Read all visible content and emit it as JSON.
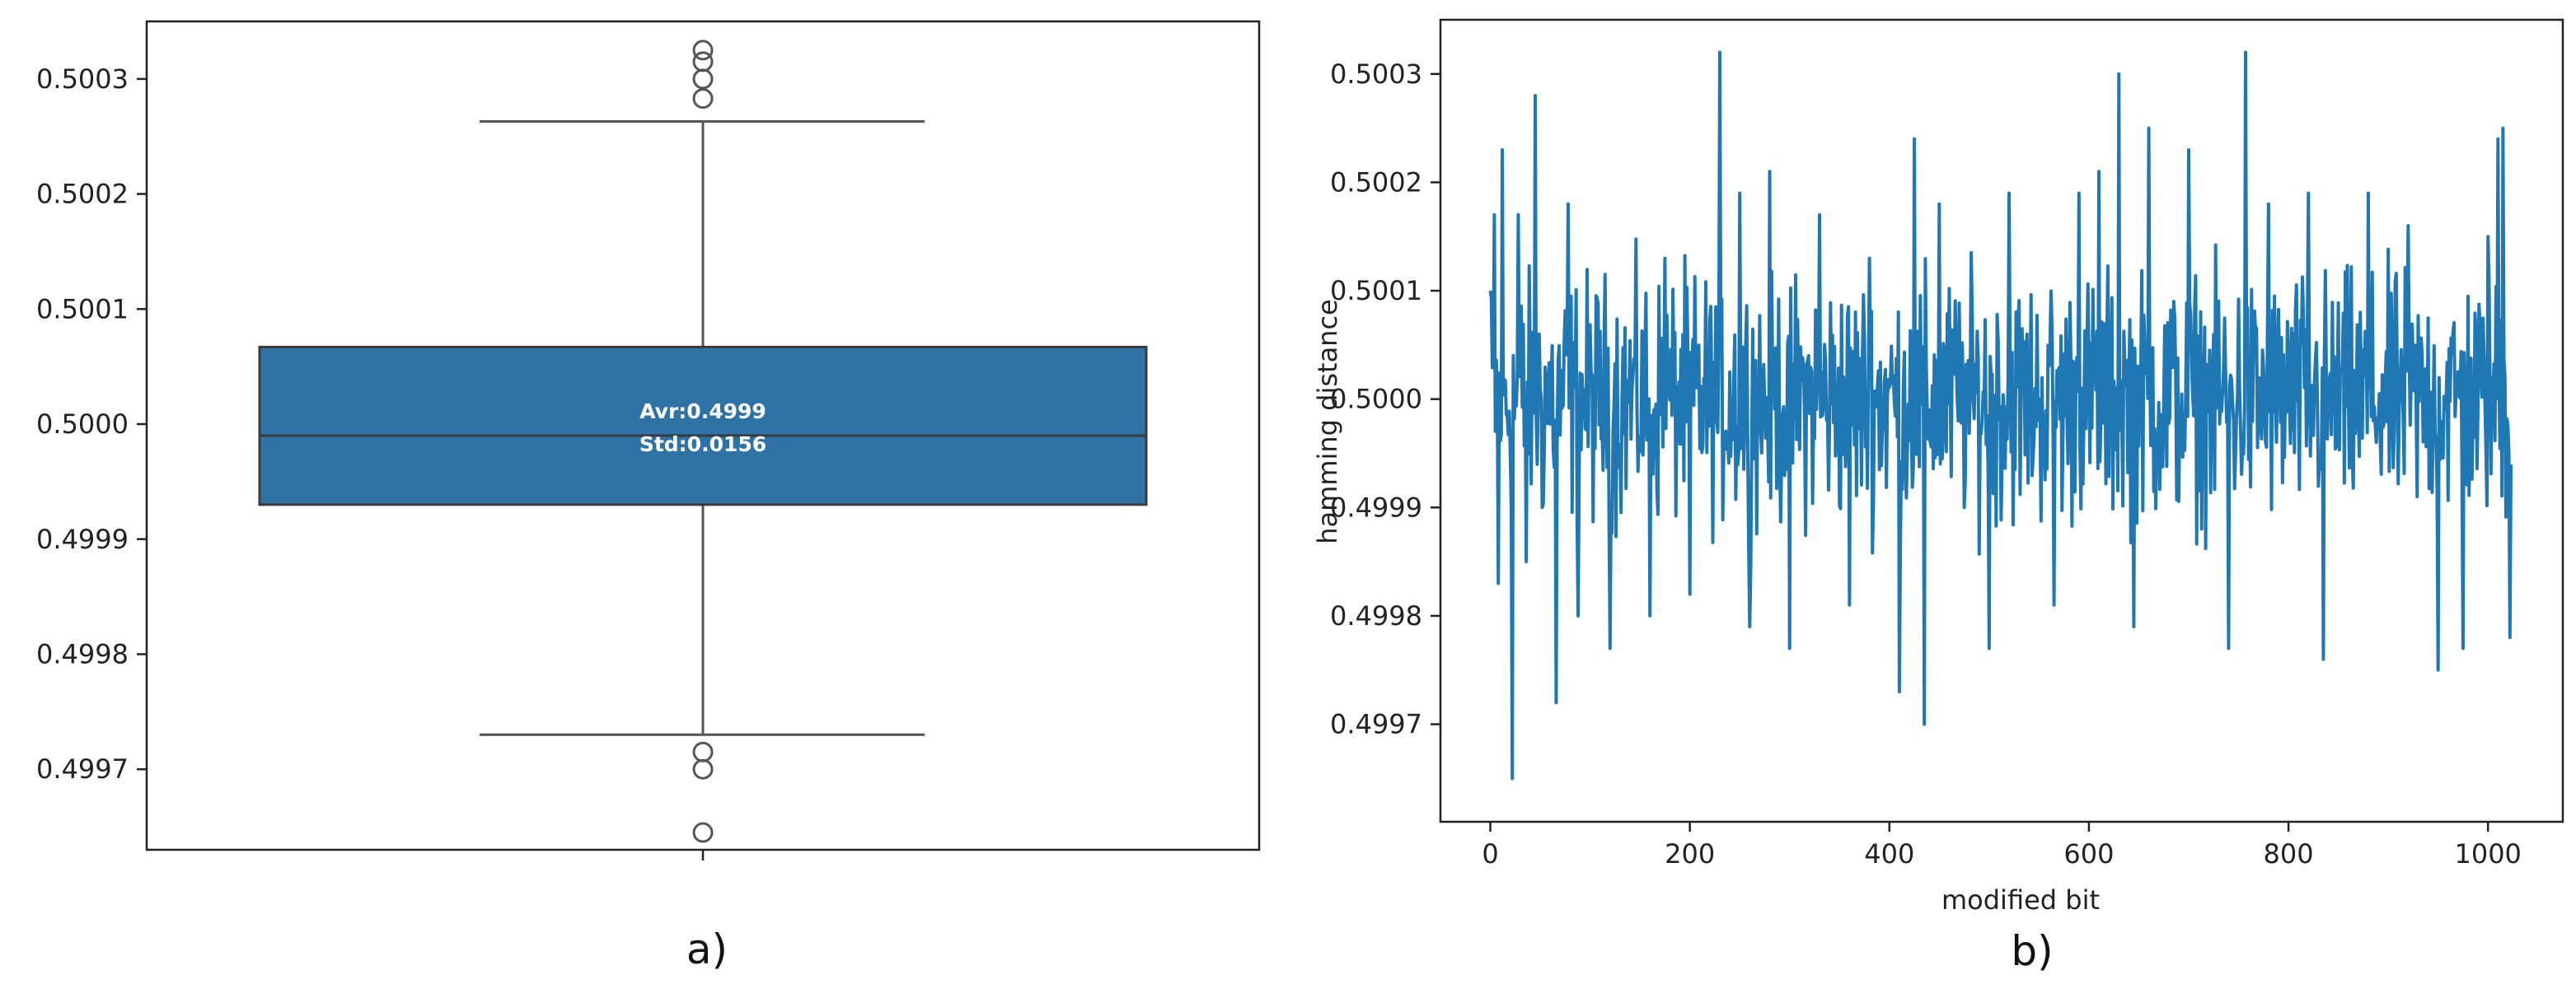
{
  "colors": {
    "box_fill": "#2f73a6",
    "line": "#1f77b4",
    "whisker": "#555555",
    "axes": "#222222"
  },
  "chart_data": [
    {
      "type": "box",
      "panel_label": "a)",
      "title": "",
      "xlabel": "",
      "ylabel": "",
      "ylim": [
        0.49963,
        0.50035
      ],
      "yticks": [
        0.4997,
        0.4998,
        0.4999,
        0.5,
        0.5001,
        0.5002,
        0.5003
      ],
      "ytick_labels": [
        "0.4997",
        "0.4998",
        "0.4999",
        "0.5000",
        "0.5001",
        "0.5002",
        "0.5003"
      ],
      "grid": false,
      "summary": {
        "whisker_low": 0.49973,
        "q1": 0.49993,
        "median": 0.49999,
        "q3": 0.500067,
        "whisker_high": 0.500263
      },
      "outliers": [
        0.500325,
        0.500315,
        0.5003,
        0.500283,
        0.499715,
        0.4997,
        0.499645
      ],
      "annotations": [
        "Avr:0.4999",
        "Std:0.0156"
      ]
    },
    {
      "type": "line",
      "panel_label": "b)",
      "title": "",
      "xlabel": "modified bit",
      "ylabel": "hamming distance",
      "xlim": [
        -50,
        1075
      ],
      "ylim": [
        0.49961,
        0.50035
      ],
      "xticks": [
        0,
        200,
        400,
        600,
        800,
        1000
      ],
      "xtick_labels": [
        "0",
        "200",
        "400",
        "600",
        "800",
        "1000"
      ],
      "yticks": [
        0.4997,
        0.4998,
        0.4999,
        0.5,
        0.5001,
        0.5002,
        0.5003
      ],
      "ytick_labels": [
        "0.4997",
        "0.4998",
        "0.4999",
        "0.5000",
        "0.5001",
        "0.5002",
        "0.5003"
      ],
      "grid": false,
      "series": [
        {
          "x_start": 0,
          "x_step": 1,
          "peaks": [
            [
              0,
              0.5001
            ],
            [
              4,
              0.50017
            ],
            [
              8,
              0.49983
            ],
            [
              12,
              0.50023
            ],
            [
              22,
              0.49965
            ],
            [
              28,
              0.50017
            ],
            [
              36,
              0.49985
            ],
            [
              45,
              0.50028
            ],
            [
              52,
              0.4999
            ],
            [
              66,
              0.49972
            ],
            [
              78,
              0.50018
            ],
            [
              88,
              0.4998
            ],
            [
              120,
              0.49977
            ],
            [
              160,
              0.4998
            ],
            [
              175,
              0.50013
            ],
            [
              200,
              0.49982
            ],
            [
              230,
              0.50032
            ],
            [
              250,
              0.50019
            ],
            [
              260,
              0.49979
            ],
            [
              280,
              0.50021
            ],
            [
              300,
              0.49977
            ],
            [
              330,
              0.50017
            ],
            [
              360,
              0.49981
            ],
            [
              380,
              0.50013
            ],
            [
              410,
              0.49973
            ],
            [
              425,
              0.50024
            ],
            [
              435,
              0.4997
            ],
            [
              450,
              0.50018
            ],
            [
              500,
              0.49977
            ],
            [
              520,
              0.50019
            ],
            [
              565,
              0.49981
            ],
            [
              590,
              0.50019
            ],
            [
              610,
              0.50021
            ],
            [
              630,
              0.5003
            ],
            [
              645,
              0.49979
            ],
            [
              660,
              0.50025
            ],
            [
              700,
              0.50023
            ],
            [
              740,
              0.49977
            ],
            [
              757,
              0.50032
            ],
            [
              780,
              0.50018
            ],
            [
              820,
              0.50019
            ],
            [
              835,
              0.49976
            ],
            [
              880,
              0.50019
            ],
            [
              920,
              0.50016
            ],
            [
              950,
              0.49975
            ],
            [
              975,
              0.49977
            ],
            [
              1000,
              0.50015
            ],
            [
              1010,
              0.50024
            ],
            [
              1015,
              0.50025
            ],
            [
              1022,
              0.49978
            ]
          ]
        }
      ]
    }
  ]
}
